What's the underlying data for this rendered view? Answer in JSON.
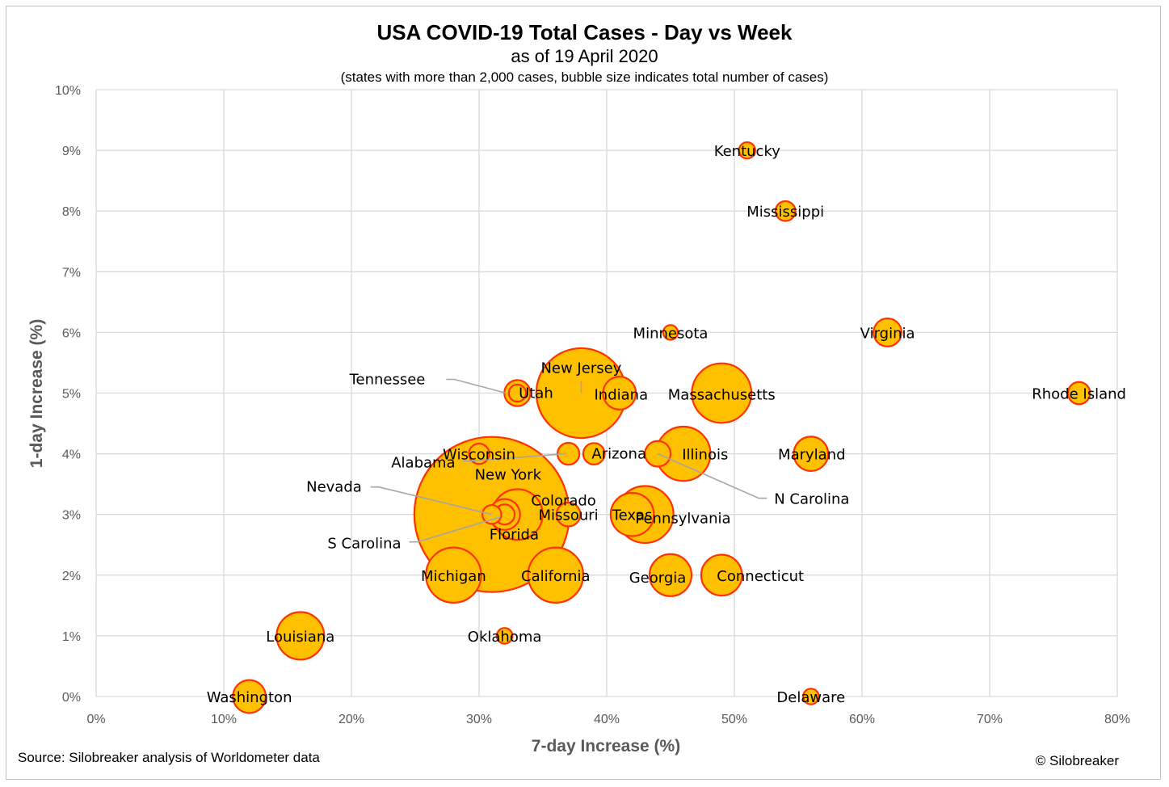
{
  "title": "USA COVID-19 Total Cases - Day vs Week",
  "subtitle": "as of 19 April 2020",
  "note": "(states with more than 2,000 cases, bubble size indicates total number of cases)",
  "source": "Source: Silobreaker analysis of Worldometer data",
  "copyright": "© Silobreaker",
  "colors": {
    "bubble_fill": "#FFC000",
    "bubble_stroke": "#FF3300",
    "grid": "#d9d9d9",
    "leader": "#a6a6a6"
  },
  "chart_data": {
    "type": "scatter",
    "title": "USA COVID-19 Total Cases - Day vs Week",
    "xlabel": "7-day Increase (%)",
    "ylabel": "1-day Increase (%)",
    "xlim": [
      0,
      80
    ],
    "ylim": [
      0,
      10
    ],
    "x_ticks": [
      "0%",
      "10%",
      "20%",
      "30%",
      "40%",
      "50%",
      "60%",
      "70%",
      "80%"
    ],
    "y_ticks": [
      "0%",
      "1%",
      "2%",
      "3%",
      "4%",
      "5%",
      "6%",
      "7%",
      "8%",
      "9%",
      "10%"
    ],
    "grid": true,
    "points": [
      {
        "label": "Kentucky",
        "x": 51,
        "y": 9,
        "size": 2700
      },
      {
        "label": "Mississippi",
        "x": 54,
        "y": 8,
        "size": 4000
      },
      {
        "label": "Minnesota",
        "x": 45,
        "y": 6,
        "size": 2200
      },
      {
        "label": "Virginia",
        "x": 62,
        "y": 6,
        "size": 8000
      },
      {
        "label": "Rhode Island",
        "x": 77,
        "y": 5,
        "size": 5000
      },
      {
        "label": "New Jersey",
        "x": 38,
        "y": 5,
        "size": 82000
      },
      {
        "label": "Utah",
        "x": 33,
        "y": 5,
        "size": 3000
      },
      {
        "label": "Indiana",
        "x": 41,
        "y": 5,
        "size": 11000
      },
      {
        "label": "Massachusetts",
        "x": 49,
        "y": 5,
        "size": 36000
      },
      {
        "label": "Tennessee",
        "x": 33,
        "y": 5,
        "size": 6900
      },
      {
        "label": "Alabama",
        "x": 37,
        "y": 4,
        "size": 4900
      },
      {
        "label": "Wisconsin",
        "x": 30,
        "y": 4,
        "size": 4200
      },
      {
        "label": "Arizona",
        "x": 39,
        "y": 4,
        "size": 4700
      },
      {
        "label": "N Carolina",
        "x": 44,
        "y": 4,
        "size": 6700
      },
      {
        "label": "Illinois",
        "x": 46,
        "y": 4,
        "size": 30000
      },
      {
        "label": "Maryland",
        "x": 56,
        "y": 4,
        "size": 12000
      },
      {
        "label": "New York",
        "x": 31,
        "y": 3,
        "size": 245000
      },
      {
        "label": "Colorado",
        "x": 32,
        "y": 3,
        "size": 9700
      },
      {
        "label": "Nevada",
        "x": 31,
        "y": 3,
        "size": 3600
      },
      {
        "label": "S Carolina",
        "x": 32,
        "y": 3,
        "size": 4100
      },
      {
        "label": "Florida",
        "x": 33,
        "y": 3,
        "size": 26000
      },
      {
        "label": "Missouri",
        "x": 37,
        "y": 3,
        "size": 5800
      },
      {
        "label": "Texas",
        "x": 42,
        "y": 3,
        "size": 19000
      },
      {
        "label": "Pennsylvania",
        "x": 43,
        "y": 3,
        "size": 33000
      },
      {
        "label": "Michigan",
        "x": 28,
        "y": 2,
        "size": 31000
      },
      {
        "label": "California",
        "x": 36,
        "y": 2,
        "size": 31000
      },
      {
        "label": "Georgia",
        "x": 45,
        "y": 2,
        "size": 18000
      },
      {
        "label": "Connecticut",
        "x": 49,
        "y": 2,
        "size": 17000
      },
      {
        "label": "Louisiana",
        "x": 16,
        "y": 1,
        "size": 23000
      },
      {
        "label": "Oklahoma",
        "x": 32,
        "y": 1,
        "size": 2500
      },
      {
        "label": "Washington",
        "x": 12,
        "y": 0,
        "size": 11000
      },
      {
        "label": "Delaware",
        "x": 56,
        "y": 0,
        "size": 2500
      }
    ]
  }
}
